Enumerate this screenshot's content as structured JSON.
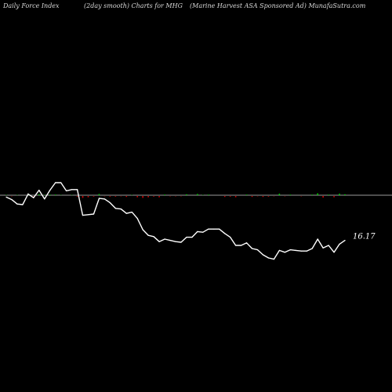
{
  "header": {
    "left": "Daily Force  Index",
    "middle": "(2day smooth) Charts for MHG",
    "right": "(Marine  Harvest ASA Sponsored Ad) MunafaSutra.com"
  },
  "colors": {
    "background": "#000000",
    "line": "#ffffff",
    "zero_line": "#9a9a9a",
    "positive_bar": "#00cc00",
    "negative_bar": "#cc0000"
  },
  "chart_data": {
    "type": "line",
    "title": "",
    "xlabel": "",
    "ylabel": "",
    "end_label": "16.17",
    "zero_level": 0,
    "ylim": [
      -12,
      2.2
    ],
    "series": [
      {
        "values": [
          -0.3,
          -0.7,
          -1.4,
          -1.5,
          0.2,
          -0.4,
          0.8,
          -0.6,
          0.8,
          2.0,
          2.0,
          0.7,
          0.9,
          0.9,
          -3.2,
          -3.1,
          -3.0,
          -0.5,
          -0.6,
          -1.2,
          -2.1,
          -2.2,
          -2.9,
          -2.7,
          -3.7,
          -5.5,
          -6.4,
          -6.6,
          -7.4,
          -7.0,
          -7.2,
          -7.4,
          -7.5,
          -6.7,
          -6.7,
          -5.8,
          -5.9,
          -5.4,
          -5.4,
          -5.4,
          -6.1,
          -6.7,
          -8.0,
          -8.0,
          -7.6,
          -8.5,
          -8.7,
          -9.5,
          -10.0,
          -10.2,
          -8.8,
          -9.1,
          -8.7,
          -8.8,
          -8.9,
          -8.9,
          -8.5,
          -7.0,
          -8.4,
          -8.0,
          -9.1,
          -7.8,
          -7.2
        ]
      }
    ],
    "force_bars": [
      0.05,
      -0.05,
      0.05,
      0.0,
      0.1,
      -0.05,
      0.15,
      0.05,
      0.1,
      0.1,
      0.05,
      0.0,
      0.05,
      -0.1,
      -0.3,
      -0.2,
      -0.1,
      0.2,
      -0.05,
      -0.1,
      -0.1,
      -0.05,
      -0.15,
      0.05,
      -0.2,
      -0.3,
      -0.2,
      -0.1,
      -0.2,
      0.1,
      -0.05,
      -0.05,
      -0.05,
      0.15,
      0.0,
      0.2,
      0.05,
      0.1,
      0.0,
      0.0,
      -0.15,
      -0.1,
      -0.2,
      0.0,
      0.1,
      -0.15,
      -0.05,
      -0.15,
      -0.1,
      -0.05,
      0.25,
      -0.05,
      0.1,
      0.0,
      -0.05,
      0.0,
      0.1,
      0.3,
      -0.25,
      0.1,
      -0.2,
      0.25,
      0.15
    ]
  }
}
